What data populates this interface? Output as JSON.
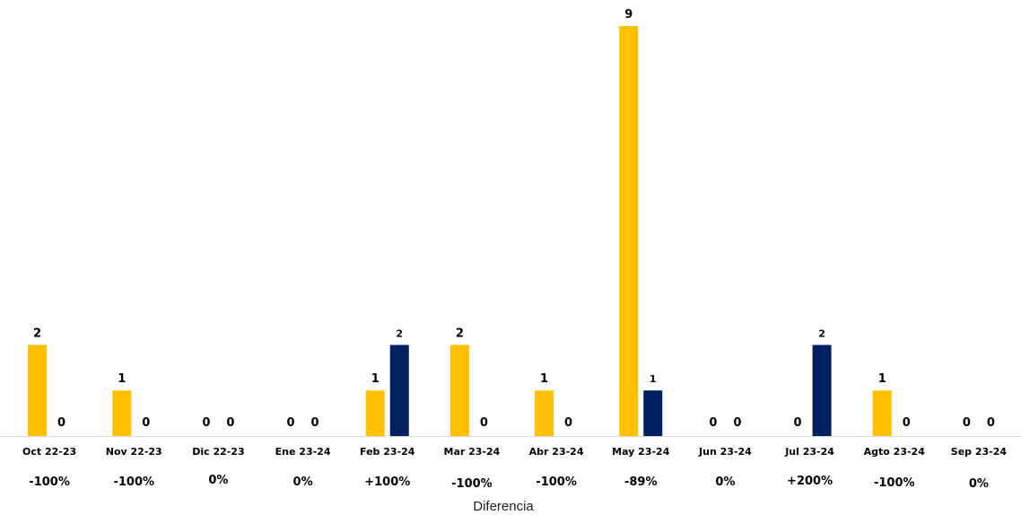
{
  "chart_data": {
    "type": "bar",
    "categories": [
      "Oct 22-23",
      "Nov 22-23",
      "Dic 22-23",
      "Ene 23-24",
      "Feb 23-24",
      "Mar 23-24",
      "Abr 23-24",
      "May 23-24",
      "Jun 23-24",
      "Jul 23-24",
      "Agto 23-24",
      "Sep 23-24"
    ],
    "series": [
      {
        "values": [
          2,
          1,
          0,
          0,
          1,
          2,
          1,
          9,
          0,
          0,
          1,
          0
        ],
        "color": "#FFC000"
      },
      {
        "values": [
          0,
          0,
          0,
          0,
          2,
          0,
          0,
          1,
          0,
          2,
          0,
          0
        ],
        "color": "#002060"
      }
    ],
    "differences": [
      "-100%",
      "-100%",
      "0%",
      "0%",
      "+100%",
      "-100%",
      "-100%",
      "-89%",
      "0%",
      "+200%",
      "-100%",
      "0%"
    ],
    "xlabel": "Diferencia",
    "ylim": [
      0,
      9
    ],
    "grid": false,
    "legend": "none",
    "axis_line_color": "#d9d9d9"
  }
}
